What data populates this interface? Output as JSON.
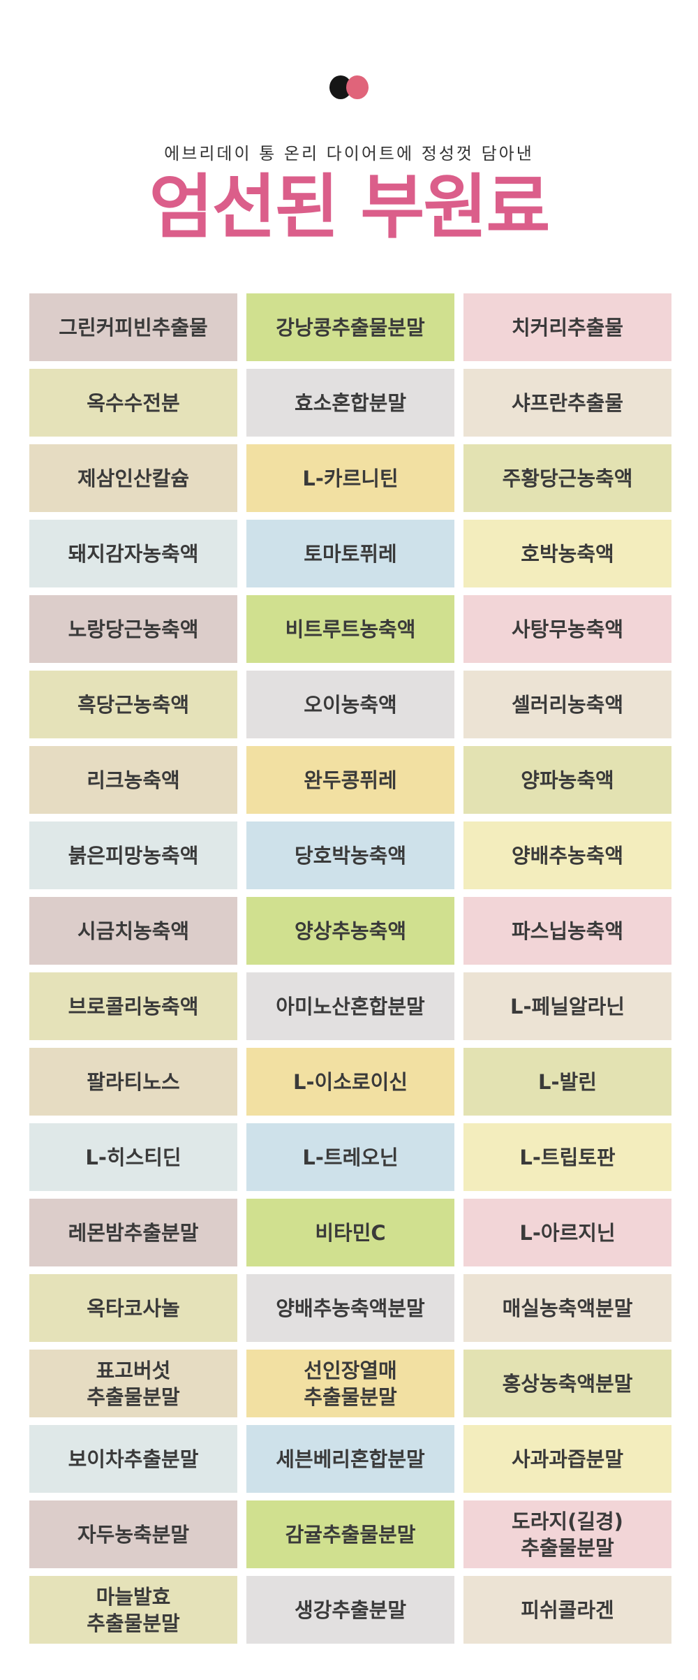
{
  "header": {
    "subtitle": "에브리데이 통 온리 다이어트에 정성껏 담아낸",
    "title": "엄선된 부원료",
    "logo_colors": [
      "#161616",
      "#e0647a"
    ]
  },
  "colors": {
    "title": "#db5e8a",
    "text": "#3a3a3a",
    "column_palettes": [
      [
        "#dccdca",
        "#e5e2b9",
        "#e6dcc2",
        "#dfe8e8"
      ],
      [
        "#d0e08f",
        "#e2e0e0",
        "#f2e0a2",
        "#cee1ea"
      ],
      [
        "#f2d5d7",
        "#ece3d4",
        "#e3e2b2",
        "#f3edbd"
      ]
    ]
  },
  "ingredients": [
    "그린커피빈추출물",
    "강낭콩추출물분말",
    "치커리추출물",
    "옥수수전분",
    "효소혼합분말",
    "샤프란추출물",
    "제삼인산칼슘",
    "L-카르니틴",
    "주황당근농축액",
    "돼지감자농축액",
    "토마토퓌레",
    "호박농축액",
    "노랑당근농축액",
    "비트루트농축액",
    "사탕무농축액",
    "흑당근농축액",
    "오이농축액",
    "셀러리농축액",
    "리크농축액",
    "완두콩퓌레",
    "양파농축액",
    "붉은피망농축액",
    "당호박농축액",
    "양배추농축액",
    "시금치농축액",
    "양상추농축액",
    "파스닙농축액",
    "브로콜리농축액",
    "아미노산혼합분말",
    "L-페닐알라닌",
    "팔라티노스",
    "L-이소로이신",
    "L-발린",
    "L-히스티딘",
    "L-트레오닌",
    "L-트립토판",
    "레몬밤추출분말",
    "비타민C",
    "L-아르지닌",
    "옥타코사놀",
    "양배추농축액분말",
    "매실농축액분말",
    "표고버섯\n추출물분말",
    "선인장열매\n추출물분말",
    "홍상농축액분말",
    "보이차추출분말",
    "세븐베리혼합분말",
    "사과과즙분말",
    "자두농축분말",
    "감귤추출물분말",
    "도라지(길경)\n추출물분말",
    "마늘발효\n추출물분말",
    "생강추출분말",
    "피쉬콜라겐"
  ]
}
